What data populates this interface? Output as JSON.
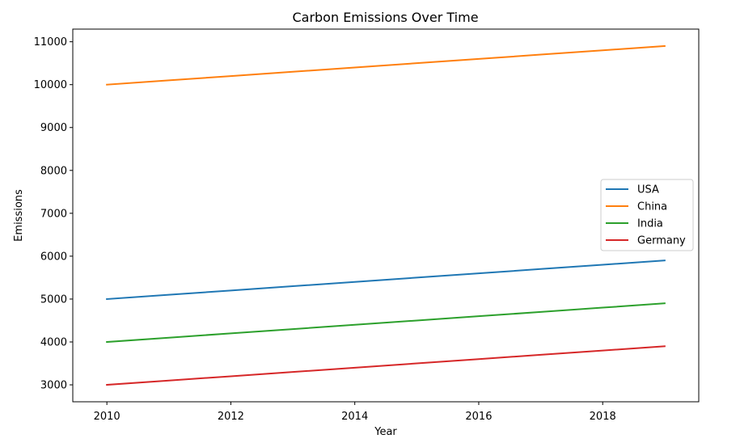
{
  "chart_data": {
    "type": "line",
    "title": "Carbon Emissions Over Time",
    "xlabel": "Year",
    "ylabel": "Emissions",
    "x": [
      2010,
      2011,
      2012,
      2013,
      2014,
      2015,
      2016,
      2017,
      2018,
      2019
    ],
    "xlim": [
      2009.45,
      2019.55
    ],
    "ylim": [
      2605,
      11295
    ],
    "xticks": [
      2010,
      2012,
      2014,
      2016,
      2018
    ],
    "yticks": [
      3000,
      4000,
      5000,
      6000,
      7000,
      8000,
      9000,
      10000,
      11000
    ],
    "grid": false,
    "legend_position": "center-right",
    "series": [
      {
        "name": "USA",
        "color": "#1f77b4",
        "values": [
          5000,
          5100,
          5200,
          5300,
          5400,
          5500,
          5600,
          5700,
          5800,
          5900
        ]
      },
      {
        "name": "China",
        "color": "#ff7f0e",
        "values": [
          10000,
          10100,
          10200,
          10300,
          10400,
          10500,
          10600,
          10700,
          10800,
          10900
        ]
      },
      {
        "name": "India",
        "color": "#2ca02c",
        "values": [
          4000,
          4100,
          4200,
          4300,
          4400,
          4500,
          4600,
          4700,
          4800,
          4900
        ]
      },
      {
        "name": "Germany",
        "color": "#d62728",
        "values": [
          3000,
          3100,
          3200,
          3300,
          3400,
          3500,
          3600,
          3700,
          3800,
          3900
        ]
      }
    ]
  }
}
